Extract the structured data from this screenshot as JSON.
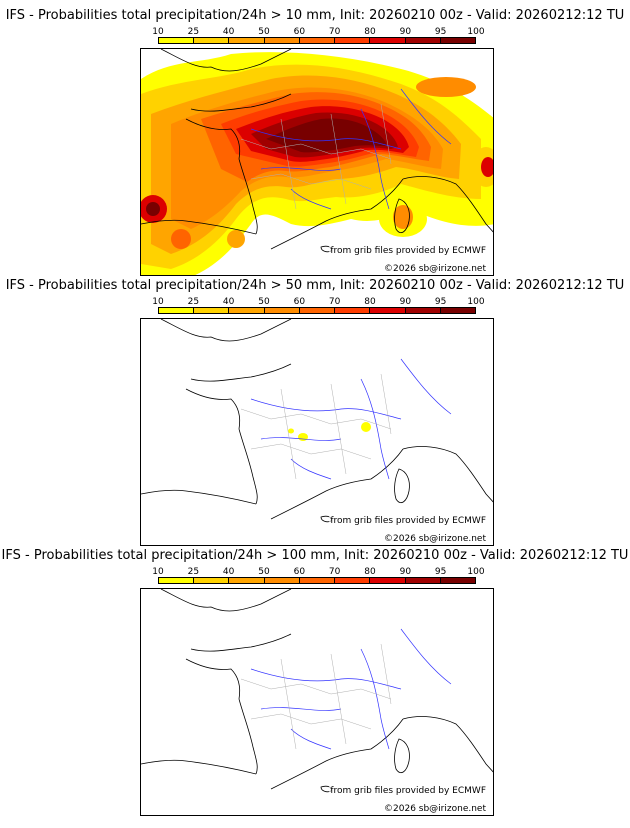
{
  "panels": [
    {
      "id": "p10",
      "title": "IFS - Probabilities total precipitation/24h > 10 mm, Init: 20260210 00z - Valid: 20260212:12 TU",
      "has_field": true,
      "anomalies": "large"
    },
    {
      "id": "p50",
      "title": "IFS - Probabilities total precipitation/24h > 50 mm, Init: 20260210 00z - Valid: 20260212:12 TU",
      "has_field": true,
      "anomalies": "spots"
    },
    {
      "id": "p100",
      "title": "IFS - Probabilities total precipitation/24h > 100 mm, Init: 20260210 00z - Valid: 20260212:12 TU",
      "has_field": false,
      "anomalies": "none"
    }
  ],
  "colorbar": {
    "levels": [
      "10",
      "25",
      "40",
      "50",
      "60",
      "70",
      "80",
      "90",
      "95",
      "100"
    ],
    "colors": [
      "#ffff00",
      "#ffd200",
      "#ffa500",
      "#ff8c00",
      "#ff6400",
      "#ff3c00",
      "#dc0000",
      "#a00000",
      "#780000"
    ]
  },
  "credit_source": "from grib files provided by ECMWF",
  "credit_copyright": "©2026 sb@irizone.net",
  "colors": {
    "coast": "#000000",
    "rivers": "#3333ff",
    "borders": "#b0b0b0"
  }
}
